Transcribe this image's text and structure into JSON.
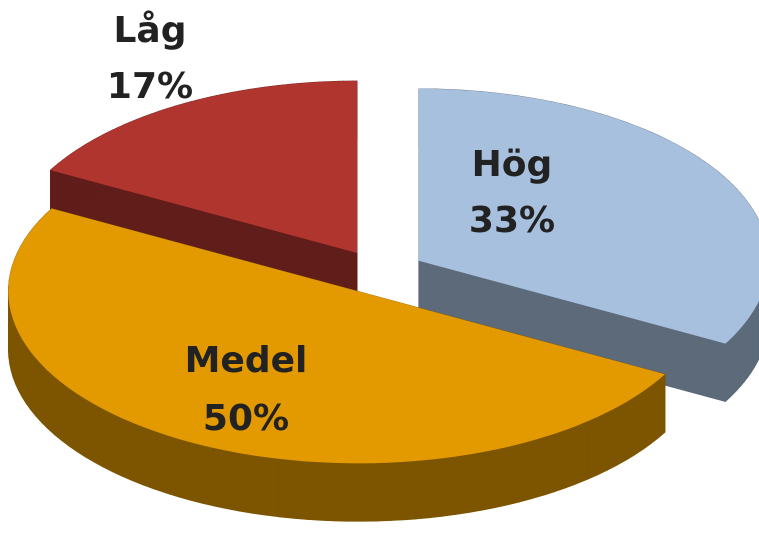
{
  "chart_data": {
    "type": "pie",
    "three_d": true,
    "exploded": true,
    "categories": [
      "Hög",
      "Medel",
      "Låg"
    ],
    "values": [
      33,
      50,
      17
    ],
    "value_labels": [
      "33%",
      "50%",
      "17%"
    ],
    "colors": [
      "#a7c0de",
      "#e39a00",
      "#b0352f"
    ]
  }
}
